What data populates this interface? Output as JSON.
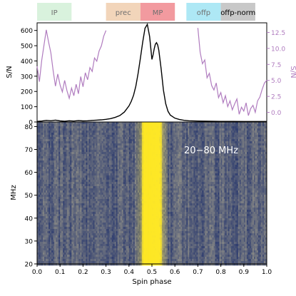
{
  "colors": {
    "profile_line": "#000000",
    "offp_line": "#b07cbf",
    "right_axis": "#b07cbf",
    "band_text": "#6f6f6f",
    "band_text_dark": "#000000",
    "spectrum_annotation": "#ffffff"
  },
  "chart_data": [
    {
      "type": "line",
      "panel": "pulse-profile",
      "title": "",
      "xlabel": "",
      "ylabel": "S/N",
      "y2label": "S/N",
      "xlim": [
        0.0,
        1.0
      ],
      "ylim": [
        0,
        650
      ],
      "y2lim": [
        -1.5,
        14.0
      ],
      "grid": false,
      "y_ticks": [
        0,
        100,
        200,
        300,
        400,
        500,
        600
      ],
      "y2_ticks": [
        0.0,
        2.5,
        5.0,
        7.5,
        10.0,
        12.5
      ],
      "y2_tick_labels": [
        "0.0",
        "2.5",
        "5.0",
        "7.5",
        "10.0",
        "12.5"
      ],
      "phase_bands": [
        {
          "label": "IP",
          "start": 0.0,
          "end": 0.15,
          "color": "#d9f2dd",
          "text_color": "#6f6f6f"
        },
        {
          "label": "prec",
          "start": 0.3,
          "end": 0.45,
          "color": "#f2d5ba",
          "text_color": "#6f6f6f"
        },
        {
          "label": "MP",
          "start": 0.45,
          "end": 0.6,
          "color": "#f29a9f",
          "text_color": "#6f6f6f"
        },
        {
          "label": "offp",
          "start": 0.65,
          "end": 0.8,
          "color": "#aee8f5",
          "text_color": "#6f6f6f"
        },
        {
          "label": "offp-norm",
          "start": 0.8,
          "end": 0.95,
          "color": "#c8c8c8",
          "text_color": "#000000"
        }
      ],
      "series": [
        {
          "axis": "left",
          "color": "#000000",
          "x": [
            0.0,
            0.02,
            0.04,
            0.06,
            0.08,
            0.1,
            0.12,
            0.14,
            0.16,
            0.18,
            0.2,
            0.22,
            0.24,
            0.26,
            0.28,
            0.3,
            0.32,
            0.34,
            0.36,
            0.38,
            0.4,
            0.41,
            0.42,
            0.43,
            0.44,
            0.45,
            0.46,
            0.47,
            0.48,
            0.49,
            0.5,
            0.505,
            0.51,
            0.515,
            0.52,
            0.525,
            0.53,
            0.54,
            0.55,
            0.56,
            0.57,
            0.58,
            0.6,
            0.62,
            0.64,
            0.66,
            0.7,
            0.75,
            0.8,
            0.85,
            0.9,
            0.95,
            1.0
          ],
          "y": [
            4,
            6,
            10,
            8,
            12,
            7,
            5,
            8,
            6,
            9,
            7,
            8,
            10,
            12,
            14,
            17,
            22,
            30,
            42,
            65,
            105,
            135,
            175,
            235,
            320,
            420,
            525,
            615,
            640,
            560,
            410,
            440,
            480,
            510,
            520,
            505,
            470,
            350,
            210,
            120,
            70,
            45,
            25,
            16,
            11,
            8,
            6,
            5,
            4,
            4,
            3,
            3,
            3
          ]
        },
        {
          "axis": "right",
          "color": "#b07cbf",
          "x": [
            0.0,
            0.01,
            0.02,
            0.03,
            0.04,
            0.05,
            0.06,
            0.07,
            0.08,
            0.09,
            0.1,
            0.11,
            0.12,
            0.13,
            0.14,
            0.15,
            0.16,
            0.17,
            0.18,
            0.19,
            0.2,
            0.21,
            0.22,
            0.23,
            0.24,
            0.25,
            0.26,
            0.27,
            0.28,
            0.29,
            0.3,
            0.7,
            0.71,
            0.72,
            0.73,
            0.74,
            0.75,
            0.76,
            0.77,
            0.78,
            0.79,
            0.8,
            0.81,
            0.82,
            0.83,
            0.84,
            0.85,
            0.86,
            0.87,
            0.88,
            0.89,
            0.9,
            0.91,
            0.92,
            0.93,
            0.94,
            0.95,
            0.96,
            0.97,
            0.98,
            0.99,
            1.0
          ],
          "y": [
            7.2,
            4.8,
            8.1,
            10.5,
            12.9,
            11.0,
            9.3,
            6.5,
            4.1,
            6.0,
            4.3,
            3.2,
            5.0,
            3.4,
            2.2,
            3.8,
            2.6,
            4.4,
            2.9,
            5.6,
            4.0,
            6.2,
            5.1,
            7.0,
            6.4,
            8.5,
            8.0,
            9.6,
            10.4,
            11.9,
            12.8,
            13.2,
            9.4,
            7.6,
            8.2,
            5.4,
            6.1,
            4.2,
            3.5,
            4.6,
            2.3,
            3.1,
            1.5,
            2.6,
            0.9,
            1.8,
            0.4,
            1.3,
            2.1,
            -0.3,
            0.8,
            0.2,
            1.5,
            -0.5,
            0.6,
            1.1,
            0.0,
            1.8,
            2.4,
            3.6,
            4.6,
            5.0
          ]
        }
      ]
    },
    {
      "type": "heatmap",
      "panel": "spectrum",
      "title": "",
      "xlabel": "Spin phase",
      "ylabel": "MHz",
      "xlim": [
        0.0,
        1.0
      ],
      "ylim": [
        20,
        82
      ],
      "grid": false,
      "annotation": "20−80 MHz",
      "x_ticks": [
        0.0,
        0.1,
        0.2,
        0.3,
        0.4,
        0.5,
        0.6,
        0.7,
        0.8,
        0.9,
        1.0
      ],
      "x_tick_labels": [
        "0.0",
        "0.1",
        "0.2",
        "0.3",
        "0.4",
        "0.5",
        "0.6",
        "0.7",
        "0.8",
        "0.9",
        "1.0"
      ],
      "y_ticks": [
        20,
        30,
        40,
        50,
        60,
        70,
        80
      ],
      "colormap": [
        "#2b3a6e",
        "#8a8a86",
        "#fde725"
      ]
    }
  ]
}
